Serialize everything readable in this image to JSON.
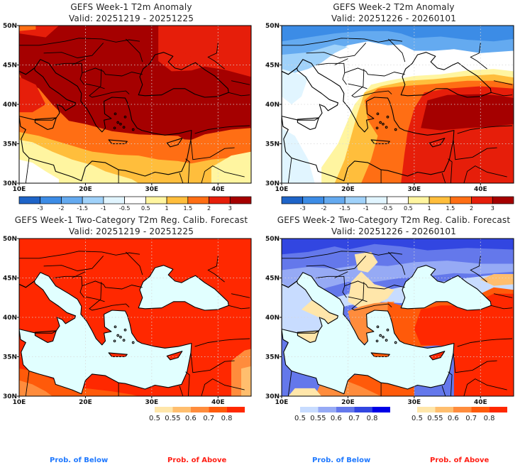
{
  "chart_data": [
    {
      "type": "heatmap",
      "id": "w1-anom",
      "title": "GEFS Week-1 T2m Anomaly",
      "subtitle": "Valid: 20251219 - 20251225",
      "xlim": [
        10,
        45
      ],
      "ylim": [
        30,
        50
      ],
      "xticks": [
        "10E",
        "20E",
        "30E",
        "40E"
      ],
      "yticks": [
        "30N",
        "35N",
        "40N",
        "45N",
        "50N"
      ],
      "grid": true,
      "colorbar": {
        "labels": [
          "-3",
          "-2",
          "-1.5",
          "-1",
          "-0.5",
          "0.5",
          "1",
          "1.5",
          "2",
          "3"
        ],
        "colors": [
          "#1e64c8",
          "#3c8ce6",
          "#64aaf0",
          "#a0d2fa",
          "#e1f5ff",
          "#ffffff",
          "#fff5a0",
          "#ffbe3c",
          "#ff6e14",
          "#e61e0a",
          "#a50000"
        ]
      },
      "field_summary": {
        "balkans_turkey_ukraine": 3,
        "black_sea": 2,
        "n_africa_coast": 1.5,
        "sahara_south": 0.5,
        "syria": 1
      }
    },
    {
      "type": "heatmap",
      "id": "w2-anom",
      "title": "GEFS Week-2 T2m Anomaly",
      "subtitle": "Valid: 20251226 - 20260101",
      "xlim": [
        10,
        45
      ],
      "ylim": [
        30,
        50
      ],
      "xticks": [
        "10E",
        "20E",
        "30E",
        "40E"
      ],
      "yticks": [
        "30N",
        "35N",
        "40N",
        "45N",
        "50N"
      ],
      "grid": true,
      "colorbar": {
        "labels": [
          "-3",
          "-2",
          "-1.5",
          "-1",
          "-0.5",
          "0.5",
          "1",
          "1.5",
          "2",
          "3"
        ],
        "colors": [
          "#1e64c8",
          "#3c8ce6",
          "#64aaf0",
          "#a0d2fa",
          "#e1f5ff",
          "#ffffff",
          "#fff5a0",
          "#ffbe3c",
          "#ff6e14",
          "#e61e0a",
          "#a50000"
        ]
      },
      "field_summary": {
        "central_europe_north": -2,
        "balkans_center": 0,
        "greece_aegean": 1.5,
        "central_turkey": 3,
        "levant": 2,
        "libya": 1
      }
    },
    {
      "type": "heatmap",
      "id": "w1-prob",
      "title": "GEFS Week-1 Two-Category T2m Reg. Calib. Forecast",
      "subtitle": "Valid: 20251219 - 20251225",
      "xlim": [
        10,
        45
      ],
      "ylim": [
        30,
        50
      ],
      "xticks": [
        "10E",
        "20E",
        "30E",
        "40E"
      ],
      "yticks": [
        "30N",
        "35N",
        "40N",
        "45N",
        "50N"
      ],
      "grid": true,
      "legend_above": {
        "labels": [
          "0.5",
          "0.55",
          "0.6",
          "0.7",
          "0.8"
        ],
        "colors": [
          "#ffe6aa",
          "#ffbe6e",
          "#ff8c3c",
          "#ff5a0a",
          "#ff2800"
        ]
      },
      "field_summary": {
        "land": 0.8,
        "n_africa": 0.7,
        "sea": "none"
      }
    },
    {
      "type": "heatmap",
      "id": "w2-prob",
      "title": "GEFS Week-2 Two-Category T2m Reg. Calib. Forecast",
      "subtitle": "Valid: 20251226 - 20260101",
      "xlim": [
        10,
        45
      ],
      "ylim": [
        30,
        50
      ],
      "xticks": [
        "10E",
        "20E",
        "30E",
        "40E"
      ],
      "yticks": [
        "30N",
        "35N",
        "40N",
        "45N",
        "50N"
      ],
      "grid": true,
      "legend_below": {
        "labels": [
          "0.5",
          "0.55",
          "0.6",
          "0.7",
          "0.8"
        ],
        "colors": [
          "#c8dcff",
          "#96aaf5",
          "#6478eb",
          "#3246e1",
          "#0000e6"
        ]
      },
      "legend_above": {
        "labels": [
          "0.5",
          "0.55",
          "0.6",
          "0.7",
          "0.8"
        ],
        "colors": [
          "#ffe6aa",
          "#ffbe6e",
          "#ff8c3c",
          "#ff5a0a",
          "#ff2800"
        ]
      },
      "field_summary": {
        "north_europe": "below 0.6-0.7",
        "greece": "above 0.6",
        "turkey_east": "above 0.7-0.8",
        "sea": "none"
      }
    }
  ],
  "footer": {
    "below_label": "Prob. of Below",
    "above_label": "Prob. of Above",
    "below_color": "#1e78ff",
    "above_color": "#ff1e14"
  },
  "sea_color": "#e1ffff"
}
